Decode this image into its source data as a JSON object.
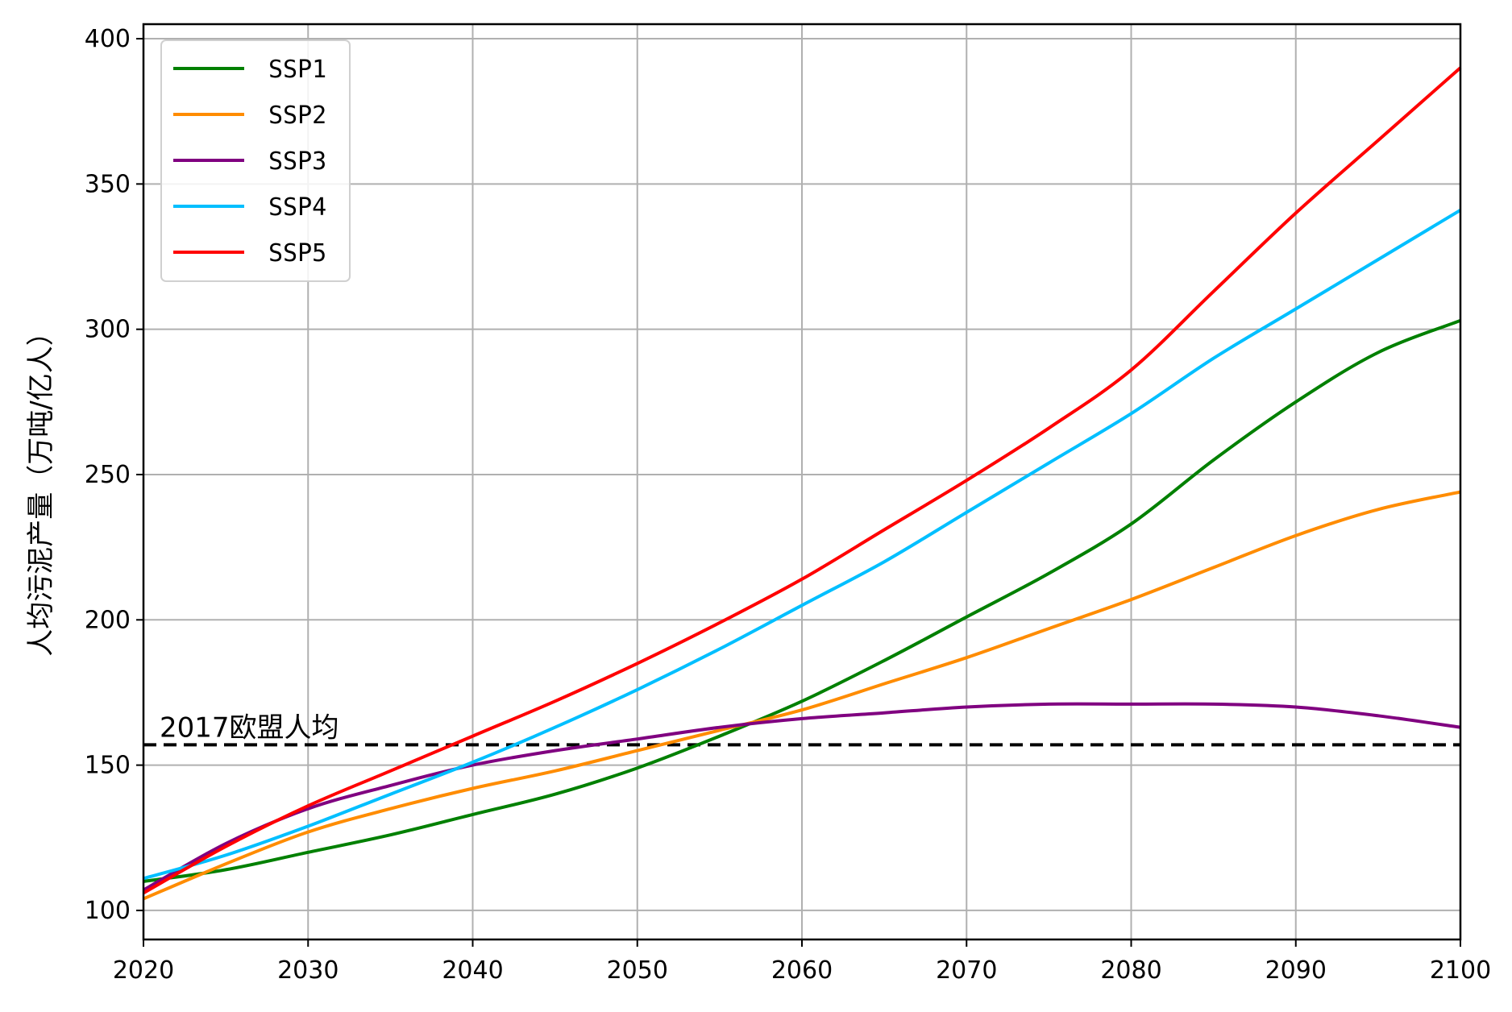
{
  "chart_data": {
    "type": "line",
    "title": "",
    "xlabel": "",
    "ylabel": "人均污泥产量（万吨/亿人）",
    "xlim": [
      2020,
      2100
    ],
    "ylim": [
      90,
      405
    ],
    "xticks": [
      2020,
      2030,
      2040,
      2050,
      2060,
      2070,
      2080,
      2090,
      2100
    ],
    "yticks": [
      100,
      150,
      200,
      250,
      300,
      350,
      400
    ],
    "grid": true,
    "legend_position": "top-left",
    "x": [
      2020,
      2025,
      2030,
      2035,
      2040,
      2045,
      2050,
      2055,
      2060,
      2065,
      2070,
      2075,
      2080,
      2085,
      2090,
      2095,
      2100
    ],
    "series": [
      {
        "name": "SSP1",
        "color": "#008000",
        "values": [
          110,
          114,
          120,
          126,
          133,
          140,
          149,
          160,
          172,
          186,
          201,
          216,
          233,
          255,
          275,
          292,
          303
        ]
      },
      {
        "name": "SSP2",
        "color": "#ff8c00",
        "values": [
          104,
          116,
          127,
          135,
          142,
          148,
          155,
          162,
          169,
          178,
          187,
          197,
          207,
          218,
          229,
          238,
          244
        ]
      },
      {
        "name": "SSP3",
        "color": "#800080",
        "values": [
          107,
          123,
          135,
          143,
          150,
          155,
          159,
          163,
          166,
          168,
          170,
          171,
          171,
          171,
          170,
          167,
          163
        ]
      },
      {
        "name": "SSP4",
        "color": "#00bfff",
        "values": [
          111,
          119,
          129,
          140,
          151,
          163,
          176,
          190,
          205,
          220,
          237,
          254,
          271,
          290,
          307,
          324,
          341
        ]
      },
      {
        "name": "SSP5",
        "color": "#ff0000",
        "values": [
          106,
          122,
          136,
          148,
          160,
          172,
          185,
          199,
          214,
          231,
          248,
          266,
          286,
          313,
          340,
          365,
          390
        ]
      }
    ],
    "reference_line": {
      "label": "2017欧盟人均",
      "value": 157,
      "color": "#000000"
    }
  }
}
